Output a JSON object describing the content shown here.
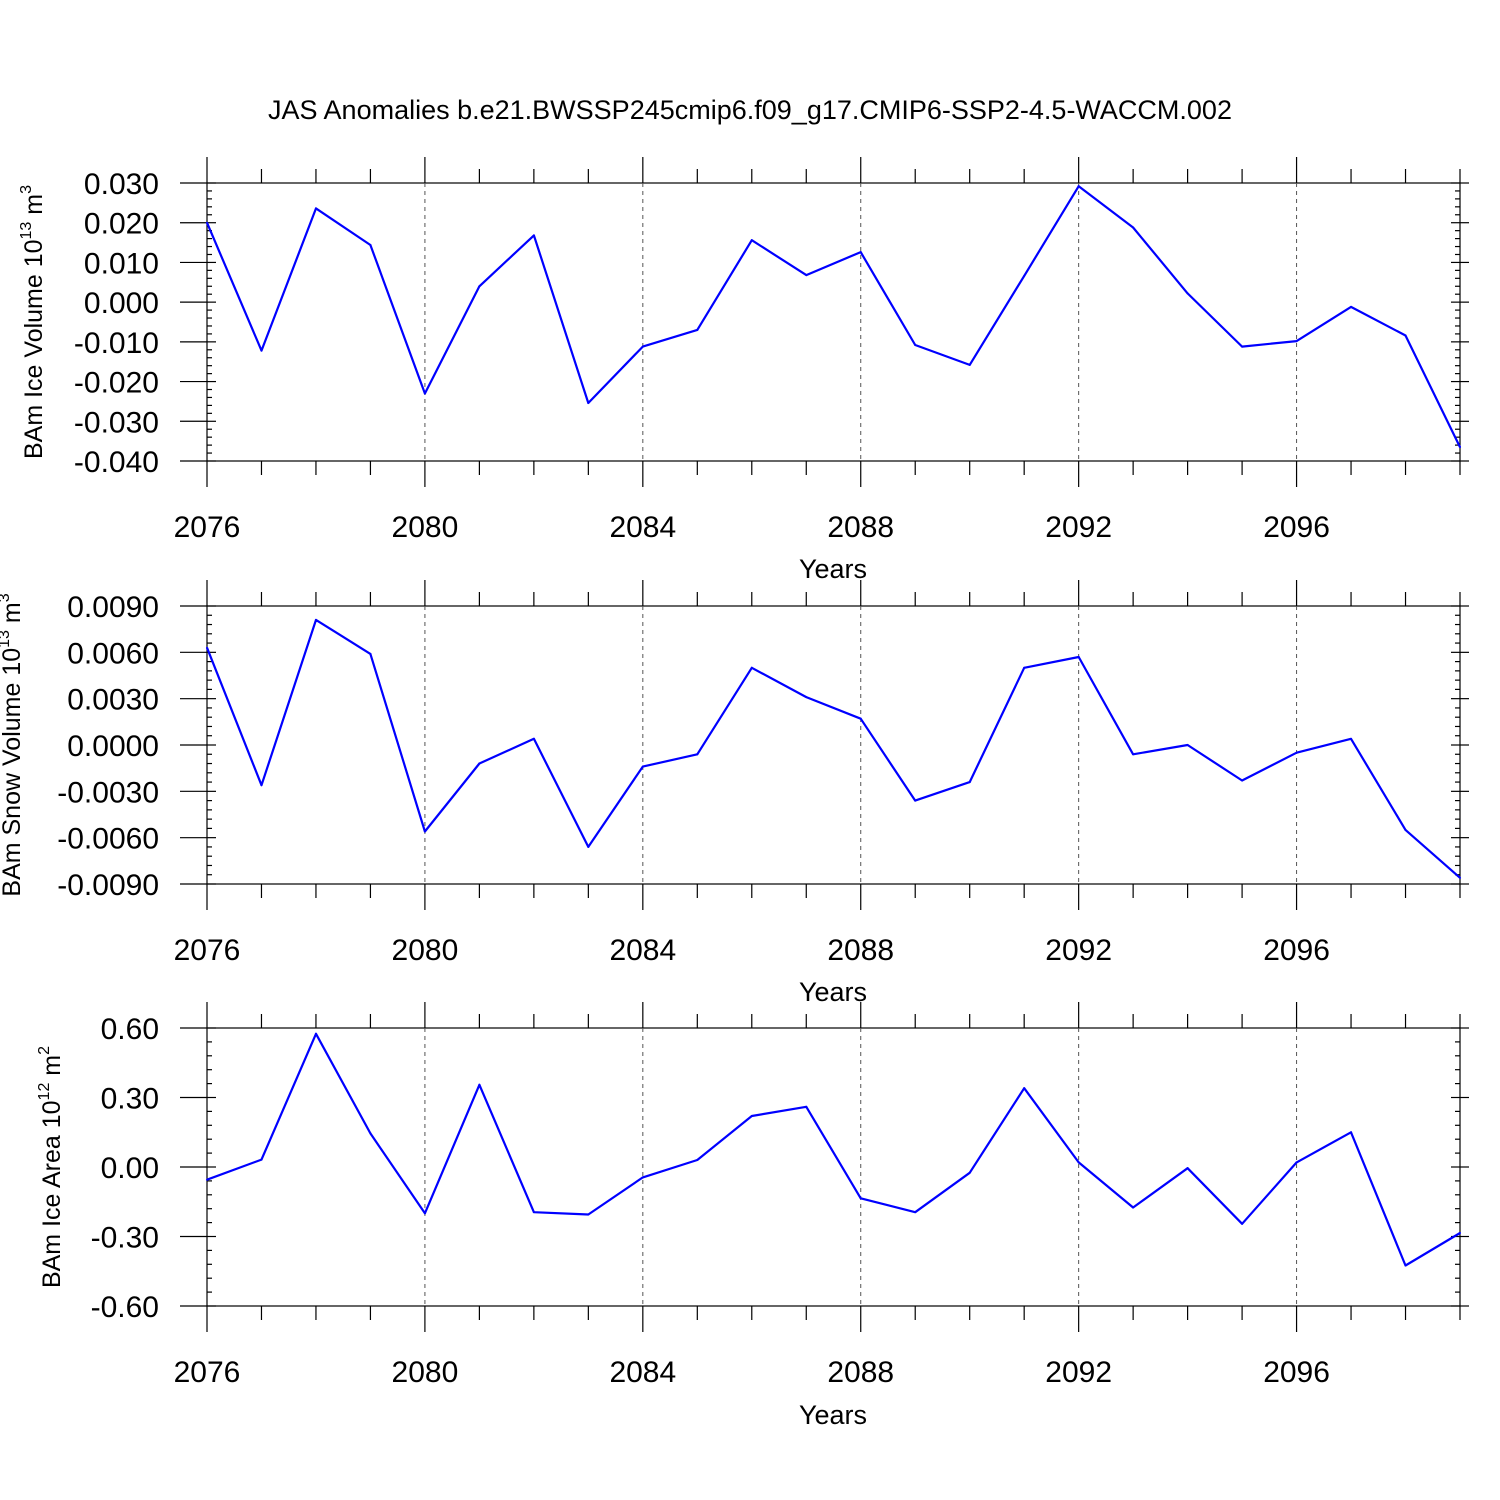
{
  "title": "JAS Anomalies b.e21.BWSSP245cmip6.f09_g17.CMIP6-SSP2-4.5-WACCM.002",
  "colors": {
    "line": "#0000ff",
    "axis": "#000000",
    "grid": "#555555"
  },
  "chart_data": [
    {
      "type": "line",
      "ylabel": {
        "text": "BAm Ice Volume 10",
        "exponent": "13",
        "unit": " m",
        "unit_exponent": "3"
      },
      "xlabel": "Years",
      "x": [
        2076,
        2077,
        2078,
        2079,
        2080,
        2081,
        2082,
        2083,
        2084,
        2085,
        2086,
        2087,
        2088,
        2089,
        2090,
        2091,
        2092,
        2093,
        2094,
        2095,
        2096,
        2097,
        2098,
        2099
      ],
      "values": [
        0.02,
        -0.0122,
        0.0236,
        0.0144,
        -0.023,
        0.004,
        0.0168,
        -0.0254,
        -0.0112,
        -0.007,
        0.0156,
        0.0068,
        0.0126,
        -0.0108,
        -0.0158,
        0.0066,
        0.0292,
        0.0188,
        0.0022,
        -0.0112,
        -0.0098,
        -0.0012,
        -0.0084,
        -0.0365
      ],
      "xlim": [
        2076,
        2099
      ],
      "ylim": [
        -0.04,
        0.03
      ],
      "xticks": [
        2076,
        2080,
        2084,
        2088,
        2092,
        2096
      ],
      "xtick_labels": [
        "2076",
        "2080",
        "2084",
        "2088",
        "2092",
        "2096"
      ],
      "yticks": [
        0.03,
        0.02,
        0.01,
        0.0,
        -0.01,
        -0.02,
        -0.03,
        -0.04
      ],
      "ytick_labels": [
        "0.030",
        "0.020",
        "0.010",
        "0.000",
        "-0.010",
        "-0.020",
        "-0.030",
        "-0.040"
      ],
      "grid": "vertical dashed at x ticks"
    },
    {
      "type": "line",
      "ylabel": {
        "text": "BAm Snow Volume 10",
        "exponent": "13",
        "unit": " m",
        "unit_exponent": "3"
      },
      "xlabel": "Years",
      "x": [
        2076,
        2077,
        2078,
        2079,
        2080,
        2081,
        2082,
        2083,
        2084,
        2085,
        2086,
        2087,
        2088,
        2089,
        2090,
        2091,
        2092,
        2093,
        2094,
        2095,
        2096,
        2097,
        2098,
        2099
      ],
      "values": [
        0.0063,
        -0.0026,
        0.0081,
        0.0059,
        -0.0056,
        -0.0012,
        0.0004,
        -0.0066,
        -0.0014,
        -0.0006,
        0.005,
        0.0031,
        0.0017,
        -0.0036,
        -0.0024,
        0.005,
        0.0057,
        -0.0006,
        0.0,
        -0.0023,
        -0.0005,
        0.0004,
        -0.0055,
        -0.0086
      ],
      "xlim": [
        2076,
        2099
      ],
      "ylim": [
        -0.009,
        0.009
      ],
      "xticks": [
        2076,
        2080,
        2084,
        2088,
        2092,
        2096
      ],
      "xtick_labels": [
        "2076",
        "2080",
        "2084",
        "2088",
        "2092",
        "2096"
      ],
      "yticks": [
        0.009,
        0.006,
        0.003,
        0.0,
        -0.003,
        -0.006,
        -0.009
      ],
      "ytick_labels": [
        "0.0090",
        "0.0060",
        "0.0030",
        "0.0000",
        "-0.0030",
        "-0.0060",
        "-0.0090"
      ],
      "grid": "vertical dashed at x ticks"
    },
    {
      "type": "line",
      "ylabel": {
        "text": "BAm Ice Area 10",
        "exponent": "12",
        "unit": " m",
        "unit_exponent": "2"
      },
      "xlabel": "Years",
      "x": [
        2076,
        2077,
        2078,
        2079,
        2080,
        2081,
        2082,
        2083,
        2084,
        2085,
        2086,
        2087,
        2088,
        2089,
        2090,
        2091,
        2092,
        2093,
        2094,
        2095,
        2096,
        2097,
        2098,
        2099
      ],
      "values": [
        -0.055,
        0.032,
        0.575,
        0.145,
        -0.2,
        0.355,
        -0.195,
        -0.205,
        -0.045,
        0.03,
        0.22,
        0.26,
        -0.135,
        -0.195,
        -0.025,
        0.34,
        0.02,
        -0.175,
        -0.005,
        -0.245,
        0.02,
        0.15,
        -0.425,
        -0.285
      ],
      "xlim": [
        2076,
        2099
      ],
      "ylim": [
        -0.6,
        0.6
      ],
      "xticks": [
        2076,
        2080,
        2084,
        2088,
        2092,
        2096
      ],
      "xtick_labels": [
        "2076",
        "2080",
        "2084",
        "2088",
        "2092",
        "2096"
      ],
      "yticks": [
        0.6,
        0.3,
        0.0,
        -0.3,
        -0.6
      ],
      "ytick_labels": [
        "0.60",
        "0.30",
        "0.00",
        "-0.30",
        "-0.60"
      ],
      "grid": "vertical dashed at x ticks"
    }
  ]
}
